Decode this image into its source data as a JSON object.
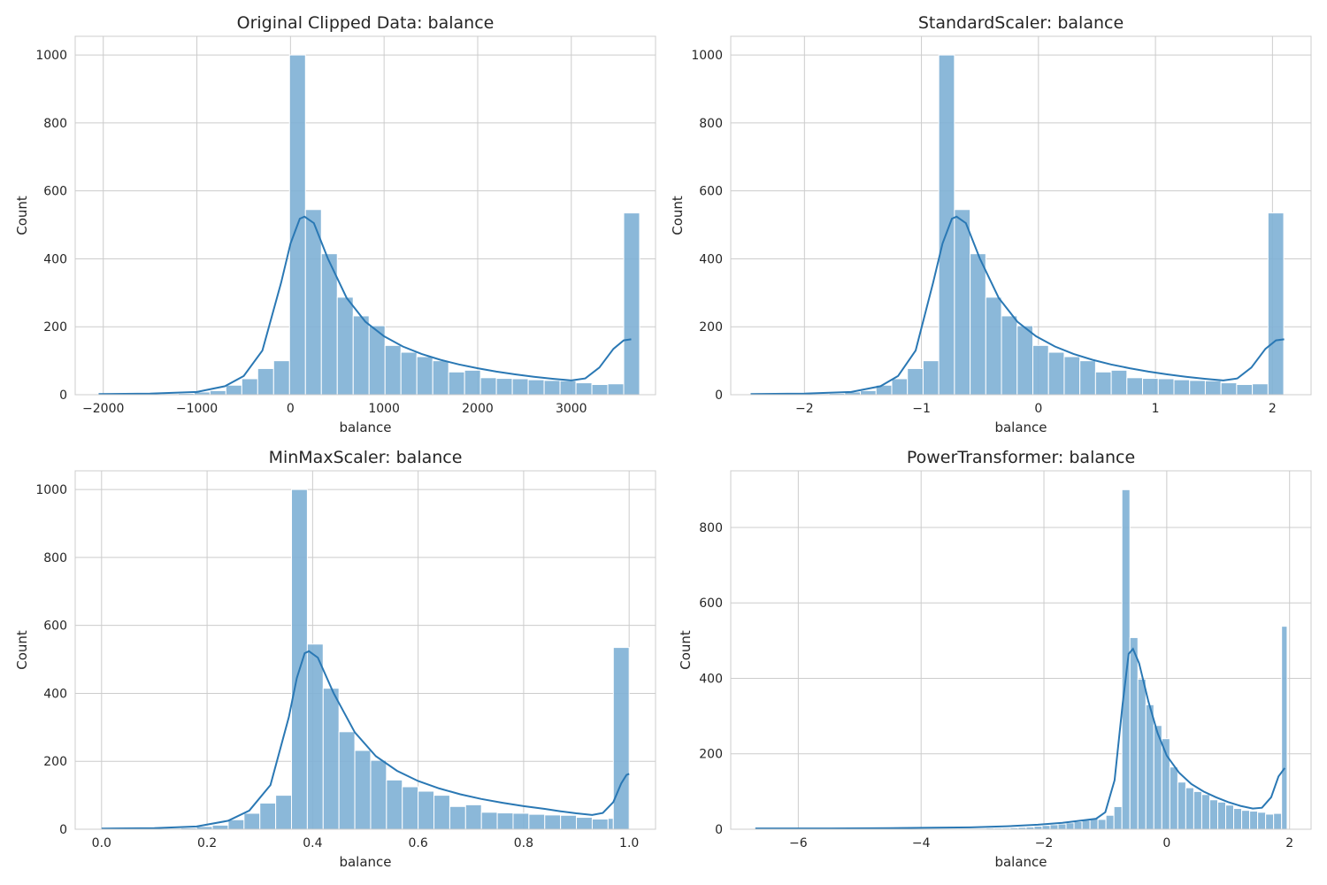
{
  "chart_data": [
    {
      "type": "histogram",
      "title": "Original Clipped Data: balance",
      "xlabel": "balance",
      "ylabel": "Count",
      "xlim": [
        -2300,
        3900
      ],
      "ylim": [
        0,
        1055
      ],
      "xticks": [
        -2000,
        -1000,
        0,
        1000,
        2000,
        3000
      ],
      "xtick_labels": [
        "−2000",
        "−1000",
        "0",
        "1000",
        "2000",
        "3000"
      ],
      "yticks": [
        0,
        200,
        400,
        600,
        800,
        1000
      ],
      "ytick_labels": [
        "0",
        "200",
        "400",
        "600",
        "800",
        "1000"
      ],
      "grid": true,
      "bins": [
        [
          -2050,
          -1880,
          1
        ],
        [
          -1880,
          -1710,
          1
        ],
        [
          -1710,
          -1540,
          2
        ],
        [
          -1540,
          -1370,
          2
        ],
        [
          -1370,
          -1200,
          3
        ],
        [
          -1200,
          -1030,
          4
        ],
        [
          -1030,
          -860,
          8
        ],
        [
          -860,
          -690,
          12
        ],
        [
          -690,
          -520,
          28
        ],
        [
          -520,
          -350,
          47
        ],
        [
          -350,
          -180,
          77
        ],
        [
          -180,
          -10,
          100
        ],
        [
          -10,
          160,
          1000
        ],
        [
          160,
          330,
          545
        ],
        [
          330,
          500,
          415
        ],
        [
          500,
          670,
          287
        ],
        [
          670,
          840,
          232
        ],
        [
          840,
          1010,
          203
        ],
        [
          1010,
          1180,
          145
        ],
        [
          1180,
          1350,
          125
        ],
        [
          1350,
          1520,
          112
        ],
        [
          1520,
          1690,
          100
        ],
        [
          1690,
          1860,
          67
        ],
        [
          1860,
          2030,
          72
        ],
        [
          2030,
          2200,
          50
        ],
        [
          2200,
          2370,
          48
        ],
        [
          2370,
          2540,
          47
        ],
        [
          2540,
          2710,
          44
        ],
        [
          2710,
          2880,
          42
        ],
        [
          2880,
          3050,
          41
        ],
        [
          3050,
          3220,
          35
        ],
        [
          3220,
          3390,
          30
        ],
        [
          3390,
          3560,
          32
        ],
        [
          3560,
          3730,
          535
        ]
      ],
      "kde": [
        [
          -2050,
          2
        ],
        [
          -1500,
          3
        ],
        [
          -1000,
          8
        ],
        [
          -700,
          25
        ],
        [
          -500,
          55
        ],
        [
          -300,
          130
        ],
        [
          -100,
          330
        ],
        [
          0,
          445
        ],
        [
          100,
          518
        ],
        [
          150,
          524
        ],
        [
          250,
          505
        ],
        [
          400,
          400
        ],
        [
          600,
          285
        ],
        [
          800,
          215
        ],
        [
          1000,
          172
        ],
        [
          1200,
          142
        ],
        [
          1400,
          120
        ],
        [
          1600,
          103
        ],
        [
          1800,
          89
        ],
        [
          2000,
          78
        ],
        [
          2200,
          68
        ],
        [
          2400,
          60
        ],
        [
          2600,
          53
        ],
        [
          2800,
          47
        ],
        [
          3000,
          42
        ],
        [
          3150,
          48
        ],
        [
          3300,
          80
        ],
        [
          3450,
          135
        ],
        [
          3560,
          160
        ],
        [
          3640,
          163
        ]
      ]
    },
    {
      "type": "histogram",
      "title": "StandardScaler: balance",
      "xlabel": "balance",
      "ylabel": "Count",
      "xlim": [
        -2.63,
        2.33
      ],
      "ylim": [
        0,
        1055
      ],
      "xticks": [
        -2,
        -1,
        0,
        1,
        2
      ],
      "xtick_labels": [
        "−2",
        "−1",
        "0",
        "1",
        "2"
      ],
      "yticks": [
        0,
        200,
        400,
        600,
        800,
        1000
      ],
      "ytick_labels": [
        "0",
        "200",
        "400",
        "600",
        "800",
        "1000"
      ],
      "grid": true,
      "bins": [
        [
          -2.46,
          -2.326,
          1
        ],
        [
          -2.326,
          -2.192,
          1
        ],
        [
          -2.192,
          -2.058,
          2
        ],
        [
          -2.058,
          -1.924,
          2
        ],
        [
          -1.924,
          -1.79,
          3
        ],
        [
          -1.79,
          -1.656,
          4
        ],
        [
          -1.656,
          -1.522,
          8
        ],
        [
          -1.522,
          -1.388,
          12
        ],
        [
          -1.388,
          -1.254,
          28
        ],
        [
          -1.254,
          -1.12,
          47
        ],
        [
          -1.12,
          -0.986,
          77
        ],
        [
          -0.986,
          -0.852,
          100
        ],
        [
          -0.852,
          -0.718,
          1000
        ],
        [
          -0.718,
          -0.584,
          545
        ],
        [
          -0.584,
          -0.45,
          415
        ],
        [
          -0.45,
          -0.316,
          287
        ],
        [
          -0.316,
          -0.182,
          232
        ],
        [
          -0.182,
          -0.048,
          203
        ],
        [
          -0.048,
          0.086,
          145
        ],
        [
          0.086,
          0.22,
          125
        ],
        [
          0.22,
          0.354,
          112
        ],
        [
          0.354,
          0.488,
          100
        ],
        [
          0.488,
          0.622,
          67
        ],
        [
          0.622,
          0.756,
          72
        ],
        [
          0.756,
          0.89,
          50
        ],
        [
          0.89,
          1.024,
          48
        ],
        [
          1.024,
          1.158,
          47
        ],
        [
          1.158,
          1.292,
          44
        ],
        [
          1.292,
          1.426,
          42
        ],
        [
          1.426,
          1.56,
          41
        ],
        [
          1.56,
          1.694,
          35
        ],
        [
          1.694,
          1.828,
          30
        ],
        [
          1.828,
          1.962,
          32
        ],
        [
          1.962,
          2.096,
          535
        ]
      ],
      "kde": [
        [
          -2.46,
          2
        ],
        [
          -2.0,
          3
        ],
        [
          -1.6,
          8
        ],
        [
          -1.35,
          25
        ],
        [
          -1.2,
          55
        ],
        [
          -1.05,
          130
        ],
        [
          -0.9,
          330
        ],
        [
          -0.82,
          445
        ],
        [
          -0.74,
          518
        ],
        [
          -0.7,
          524
        ],
        [
          -0.62,
          505
        ],
        [
          -0.5,
          400
        ],
        [
          -0.34,
          285
        ],
        [
          -0.18,
          215
        ],
        [
          -0.02,
          172
        ],
        [
          0.14,
          142
        ],
        [
          0.3,
          120
        ],
        [
          0.46,
          103
        ],
        [
          0.62,
          89
        ],
        [
          0.78,
          78
        ],
        [
          0.94,
          68
        ],
        [
          1.1,
          60
        ],
        [
          1.26,
          53
        ],
        [
          1.42,
          47
        ],
        [
          1.58,
          42
        ],
        [
          1.7,
          48
        ],
        [
          1.82,
          80
        ],
        [
          1.94,
          135
        ],
        [
          2.03,
          160
        ],
        [
          2.1,
          163
        ]
      ]
    },
    {
      "type": "histogram",
      "title": "MinMaxScaler: balance",
      "xlabel": "balance",
      "ylabel": "Count",
      "xlim": [
        -0.05,
        1.05
      ],
      "ylim": [
        0,
        1055
      ],
      "xticks": [
        0.0,
        0.2,
        0.4,
        0.6,
        0.8,
        1.0
      ],
      "xtick_labels": [
        "0.0",
        "0.2",
        "0.4",
        "0.6",
        "0.8",
        "1.0"
      ],
      "yticks": [
        0,
        200,
        400,
        600,
        800,
        1000
      ],
      "ytick_labels": [
        "0",
        "200",
        "400",
        "600",
        "800",
        "1000"
      ],
      "grid": true,
      "bins": [
        [
          0.0,
          0.03,
          1
        ],
        [
          0.03,
          0.06,
          1
        ],
        [
          0.06,
          0.09,
          2
        ],
        [
          0.09,
          0.12,
          2
        ],
        [
          0.12,
          0.15,
          3
        ],
        [
          0.15,
          0.18,
          4
        ],
        [
          0.18,
          0.21,
          8
        ],
        [
          0.21,
          0.24,
          12
        ],
        [
          0.24,
          0.27,
          28
        ],
        [
          0.27,
          0.3,
          47
        ],
        [
          0.3,
          0.33,
          77
        ],
        [
          0.33,
          0.36,
          100
        ],
        [
          0.36,
          0.39,
          1000
        ],
        [
          0.39,
          0.42,
          545
        ],
        [
          0.42,
          0.45,
          415
        ],
        [
          0.45,
          0.48,
          287
        ],
        [
          0.48,
          0.51,
          232
        ],
        [
          0.51,
          0.54,
          203
        ],
        [
          0.54,
          0.57,
          145
        ],
        [
          0.57,
          0.6,
          125
        ],
        [
          0.6,
          0.63,
          112
        ],
        [
          0.63,
          0.66,
          100
        ],
        [
          0.66,
          0.69,
          67
        ],
        [
          0.69,
          0.72,
          72
        ],
        [
          0.72,
          0.75,
          50
        ],
        [
          0.75,
          0.78,
          48
        ],
        [
          0.78,
          0.81,
          47
        ],
        [
          0.81,
          0.84,
          44
        ],
        [
          0.84,
          0.87,
          42
        ],
        [
          0.87,
          0.9,
          41
        ],
        [
          0.9,
          0.93,
          35
        ],
        [
          0.93,
          0.96,
          30
        ],
        [
          0.96,
          0.97,
          32
        ],
        [
          0.97,
          1.0,
          535
        ]
      ],
      "kde": [
        [
          0.0,
          2
        ],
        [
          0.1,
          3
        ],
        [
          0.18,
          8
        ],
        [
          0.24,
          25
        ],
        [
          0.28,
          55
        ],
        [
          0.32,
          130
        ],
        [
          0.355,
          330
        ],
        [
          0.37,
          445
        ],
        [
          0.385,
          518
        ],
        [
          0.393,
          524
        ],
        [
          0.41,
          505
        ],
        [
          0.44,
          400
        ],
        [
          0.48,
          285
        ],
        [
          0.52,
          215
        ],
        [
          0.56,
          172
        ],
        [
          0.6,
          142
        ],
        [
          0.64,
          120
        ],
        [
          0.68,
          103
        ],
        [
          0.72,
          89
        ],
        [
          0.76,
          78
        ],
        [
          0.8,
          68
        ],
        [
          0.84,
          60
        ],
        [
          0.87,
          53
        ],
        [
          0.9,
          47
        ],
        [
          0.93,
          42
        ],
        [
          0.95,
          48
        ],
        [
          0.97,
          80
        ],
        [
          0.985,
          135
        ],
        [
          0.995,
          160
        ],
        [
          1.0,
          163
        ]
      ]
    },
    {
      "type": "histogram",
      "title": "PowerTransformer: balance",
      "xlabel": "balance",
      "ylabel": "Count",
      "xlim": [
        -7.1,
        2.35
      ],
      "ylim": [
        0,
        950
      ],
      "xticks": [
        -6,
        -4,
        -2,
        0,
        2
      ],
      "xtick_labels": [
        "−6",
        "−4",
        "−2",
        "0",
        "2"
      ],
      "yticks": [
        0,
        200,
        400,
        600,
        800
      ],
      "ytick_labels": [
        "0",
        "200",
        "400",
        "600",
        "800"
      ],
      "grid": true,
      "bins": [
        [
          -3.2,
          -3.07,
          2
        ],
        [
          -3.07,
          -2.94,
          2
        ],
        [
          -2.94,
          -2.81,
          3
        ],
        [
          -2.81,
          -2.68,
          3
        ],
        [
          -2.68,
          -2.55,
          3
        ],
        [
          -2.55,
          -2.42,
          4
        ],
        [
          -2.42,
          -2.29,
          5
        ],
        [
          -2.29,
          -2.16,
          6
        ],
        [
          -2.16,
          -2.03,
          8
        ],
        [
          -2.03,
          -1.9,
          10
        ],
        [
          -1.9,
          -1.77,
          12
        ],
        [
          -1.77,
          -1.64,
          14
        ],
        [
          -1.64,
          -1.51,
          17
        ],
        [
          -1.51,
          -1.38,
          20
        ],
        [
          -1.38,
          -1.25,
          24
        ],
        [
          -1.25,
          -1.12,
          29
        ],
        [
          -1.12,
          -0.99,
          26
        ],
        [
          -0.99,
          -0.86,
          37
        ],
        [
          -0.86,
          -0.73,
          60
        ],
        [
          -0.73,
          -0.6,
          900
        ],
        [
          -0.6,
          -0.47,
          508
        ],
        [
          -0.47,
          -0.34,
          398
        ],
        [
          -0.34,
          -0.21,
          330
        ],
        [
          -0.21,
          -0.08,
          275
        ],
        [
          -0.08,
          0.05,
          240
        ],
        [
          0.05,
          0.18,
          165
        ],
        [
          0.18,
          0.31,
          125
        ],
        [
          0.31,
          0.44,
          110
        ],
        [
          0.44,
          0.57,
          100
        ],
        [
          0.57,
          0.7,
          92
        ],
        [
          0.7,
          0.83,
          78
        ],
        [
          0.83,
          0.96,
          72
        ],
        [
          0.96,
          1.09,
          64
        ],
        [
          1.09,
          1.22,
          55
        ],
        [
          1.22,
          1.35,
          50
        ],
        [
          1.35,
          1.48,
          48
        ],
        [
          1.48,
          1.61,
          45
        ],
        [
          1.61,
          1.74,
          40
        ],
        [
          1.74,
          1.87,
          42
        ],
        [
          1.87,
          1.96,
          538
        ]
      ],
      "kde": [
        [
          -6.7,
          2
        ],
        [
          -5.5,
          2
        ],
        [
          -4.5,
          3
        ],
        [
          -3.8,
          4
        ],
        [
          -3.2,
          5
        ],
        [
          -2.6,
          8
        ],
        [
          -2.1,
          12
        ],
        [
          -1.7,
          17
        ],
        [
          -1.4,
          23
        ],
        [
          -1.15,
          28
        ],
        [
          -1.0,
          45
        ],
        [
          -0.85,
          130
        ],
        [
          -0.72,
          330
        ],
        [
          -0.62,
          465
        ],
        [
          -0.55,
          478
        ],
        [
          -0.45,
          440
        ],
        [
          -0.3,
          340
        ],
        [
          -0.15,
          255
        ],
        [
          0.0,
          195
        ],
        [
          0.2,
          150
        ],
        [
          0.4,
          120
        ],
        [
          0.6,
          100
        ],
        [
          0.8,
          85
        ],
        [
          1.0,
          72
        ],
        [
          1.2,
          62
        ],
        [
          1.4,
          55
        ],
        [
          1.55,
          57
        ],
        [
          1.7,
          85
        ],
        [
          1.82,
          140
        ],
        [
          1.92,
          162
        ]
      ]
    }
  ]
}
